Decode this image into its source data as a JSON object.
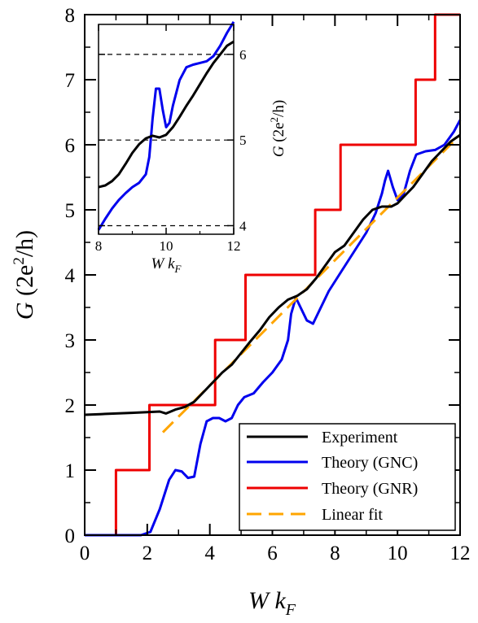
{
  "chart_data": [
    {
      "type": "line",
      "xlabel": "W k_F",
      "ylabel": "G (2e^2/h)",
      "xlim": [
        0,
        12
      ],
      "ylim": [
        0,
        8
      ],
      "xticks": [
        "0",
        "2",
        "4",
        "6",
        "8",
        "10",
        "12"
      ],
      "yticks": [
        "0",
        "1",
        "2",
        "3",
        "4",
        "5",
        "6",
        "7",
        "8"
      ],
      "grid": false,
      "legend_position": "bottom-right",
      "series": [
        {
          "name": "Experiment",
          "color": "#000000",
          "dash": "solid",
          "x": [
            0,
            0.5,
            1.0,
            1.5,
            2.0,
            2.4,
            2.6,
            2.9,
            3.2,
            3.5,
            3.8,
            4.1,
            4.4,
            4.7,
            5.0,
            5.3,
            5.6,
            5.9,
            6.2,
            6.5,
            6.8,
            7.1,
            7.4,
            7.7,
            8.0,
            8.3,
            8.6,
            8.9,
            9.2,
            9.5,
            9.8,
            10.0,
            10.2,
            10.5,
            10.8,
            11.1,
            11.4,
            11.7,
            12.0
          ],
          "y": [
            1.85,
            1.86,
            1.87,
            1.88,
            1.89,
            1.9,
            1.87,
            1.93,
            1.97,
            2.05,
            2.2,
            2.35,
            2.5,
            2.62,
            2.8,
            2.98,
            3.15,
            3.35,
            3.5,
            3.62,
            3.68,
            3.78,
            3.95,
            4.15,
            4.35,
            4.45,
            4.65,
            4.85,
            5.0,
            5.05,
            5.05,
            5.1,
            5.2,
            5.35,
            5.55,
            5.75,
            5.9,
            6.05,
            6.15
          ]
        },
        {
          "name": "Theory (GNC)",
          "color": "#0000ee",
          "dash": "solid",
          "x": [
            0,
            1.0,
            1.8,
            2.1,
            2.4,
            2.7,
            2.9,
            3.1,
            3.3,
            3.5,
            3.7,
            3.9,
            4.1,
            4.3,
            4.5,
            4.7,
            4.9,
            5.1,
            5.4,
            5.7,
            6.0,
            6.3,
            6.5,
            6.6,
            6.75,
            6.9,
            7.1,
            7.3,
            7.5,
            7.8,
            8.2,
            8.6,
            9.0,
            9.3,
            9.5,
            9.6,
            9.7,
            9.85,
            10.0,
            10.2,
            10.4,
            10.6,
            10.9,
            11.2,
            11.5,
            11.8,
            12.0
          ],
          "y": [
            0,
            0,
            0,
            0.05,
            0.4,
            0.85,
            1.0,
            0.98,
            0.88,
            0.9,
            1.4,
            1.75,
            1.8,
            1.8,
            1.75,
            1.8,
            2.0,
            2.12,
            2.18,
            2.35,
            2.5,
            2.7,
            3.0,
            3.4,
            3.65,
            3.5,
            3.3,
            3.25,
            3.45,
            3.75,
            4.05,
            4.35,
            4.65,
            4.95,
            5.25,
            5.45,
            5.6,
            5.35,
            5.15,
            5.25,
            5.6,
            5.85,
            5.9,
            5.92,
            6.0,
            6.2,
            6.38
          ]
        },
        {
          "name": "Theory (GNR)",
          "color": "#ee0000",
          "dash": "solid",
          "x": [
            0,
            1.0,
            1.0,
            2.07,
            2.07,
            4.17,
            4.17,
            5.14,
            5.14,
            7.37,
            7.37,
            8.18,
            8.18,
            10.58,
            10.58,
            11.2,
            11.2,
            12.0
          ],
          "y": [
            0,
            0,
            1,
            1,
            2,
            2,
            3,
            3,
            4,
            4,
            5,
            5,
            6,
            6,
            7,
            7,
            8,
            8
          ]
        },
        {
          "name": "Linear fit",
          "color": "#ffa500",
          "dash": "dashed",
          "x": [
            2.5,
            12.0
          ],
          "y": [
            1.58,
            6.15
          ]
        }
      ]
    },
    {
      "type": "line",
      "xlabel": "W k_F",
      "ylabel": "G (2e^2/h)",
      "xlim": [
        8,
        12
      ],
      "ylim": [
        3.9,
        6.35
      ],
      "xticks": [
        "8",
        "10",
        "12"
      ],
      "yticks": [
        "4",
        "5",
        "6"
      ],
      "hlines": [
        4.0,
        5.0,
        6.0
      ],
      "series": [
        {
          "name": "Experiment",
          "color": "#000000",
          "x": [
            8.0,
            8.2,
            8.4,
            8.6,
            8.8,
            9.0,
            9.2,
            9.4,
            9.6,
            9.8,
            10.0,
            10.2,
            10.4,
            10.6,
            10.8,
            11.0,
            11.2,
            11.4,
            11.6,
            11.8,
            12.0
          ],
          "y": [
            4.45,
            4.47,
            4.52,
            4.6,
            4.72,
            4.85,
            4.95,
            5.02,
            5.05,
            5.03,
            5.06,
            5.15,
            5.27,
            5.4,
            5.52,
            5.65,
            5.78,
            5.9,
            6.0,
            6.1,
            6.15
          ]
        },
        {
          "name": "Theory (GNC)",
          "color": "#0000ee",
          "x": [
            8.0,
            8.2,
            8.4,
            8.6,
            8.8,
            9.0,
            9.2,
            9.4,
            9.5,
            9.6,
            9.7,
            9.8,
            9.9,
            10.0,
            10.1,
            10.2,
            10.4,
            10.6,
            10.8,
            11.0,
            11.2,
            11.4,
            11.6,
            11.8,
            12.0
          ],
          "y": [
            3.95,
            4.08,
            4.2,
            4.3,
            4.38,
            4.45,
            4.5,
            4.6,
            4.8,
            5.25,
            5.6,
            5.6,
            5.35,
            5.15,
            5.2,
            5.4,
            5.7,
            5.85,
            5.88,
            5.9,
            5.92,
            5.98,
            6.1,
            6.25,
            6.38
          ]
        }
      ]
    }
  ],
  "legend": {
    "items": [
      {
        "label": "Experiment",
        "color": "#000000",
        "dash": "solid"
      },
      {
        "label": "Theory (GNC)",
        "color": "#0000ee",
        "dash": "solid"
      },
      {
        "label": "Theory (GNR)",
        "color": "#ee0000",
        "dash": "solid"
      },
      {
        "label": "Linear fit",
        "color": "#ffa500",
        "dash": "dashed"
      }
    ]
  }
}
